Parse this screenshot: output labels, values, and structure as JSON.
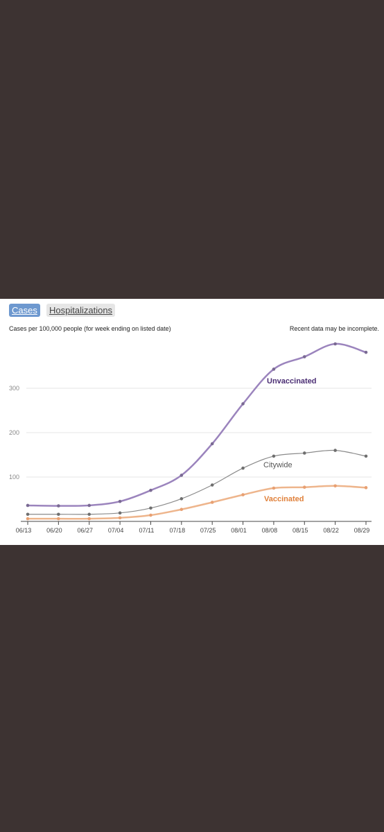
{
  "tabs": [
    {
      "label": "Cases",
      "active": true
    },
    {
      "label": "Hospitalizations",
      "active": false
    }
  ],
  "subtitle": "Cases per 100,000 people (for week ending on listed date)",
  "note": "Recent data may be incomplete.",
  "colors": {
    "background": "#3d3332",
    "active_tab": "#6d98cf",
    "unvaccinated": "#9b84bd",
    "unvaccinated_label": "#4a2d73",
    "citywide": "#8a8a8a",
    "citywide_label": "#555555",
    "vaccinated": "#eeb58c",
    "vaccinated_label": "#e0803a"
  },
  "chart_data": {
    "type": "line",
    "categories": [
      "06/13",
      "06/20",
      "06/27",
      "07/04",
      "07/11",
      "07/18",
      "07/25",
      "08/01",
      "08/08",
      "08/15",
      "08/22",
      "08/29"
    ],
    "ylim": [
      0,
      410
    ],
    "yticks": [
      100,
      200,
      300
    ],
    "grid": true,
    "series": [
      {
        "name": "Unvaccinated",
        "values": [
          36,
          35,
          36,
          45,
          70,
          104,
          175,
          265,
          343,
          371,
          400,
          381
        ]
      },
      {
        "name": "Citywide",
        "values": [
          16,
          16,
          16,
          19,
          30,
          51,
          82,
          120,
          147,
          154,
          160,
          147
        ]
      },
      {
        "name": "Vaccinated",
        "values": [
          6,
          6,
          6,
          8,
          14,
          27,
          43,
          60,
          75,
          77,
          80,
          76
        ]
      }
    ]
  }
}
